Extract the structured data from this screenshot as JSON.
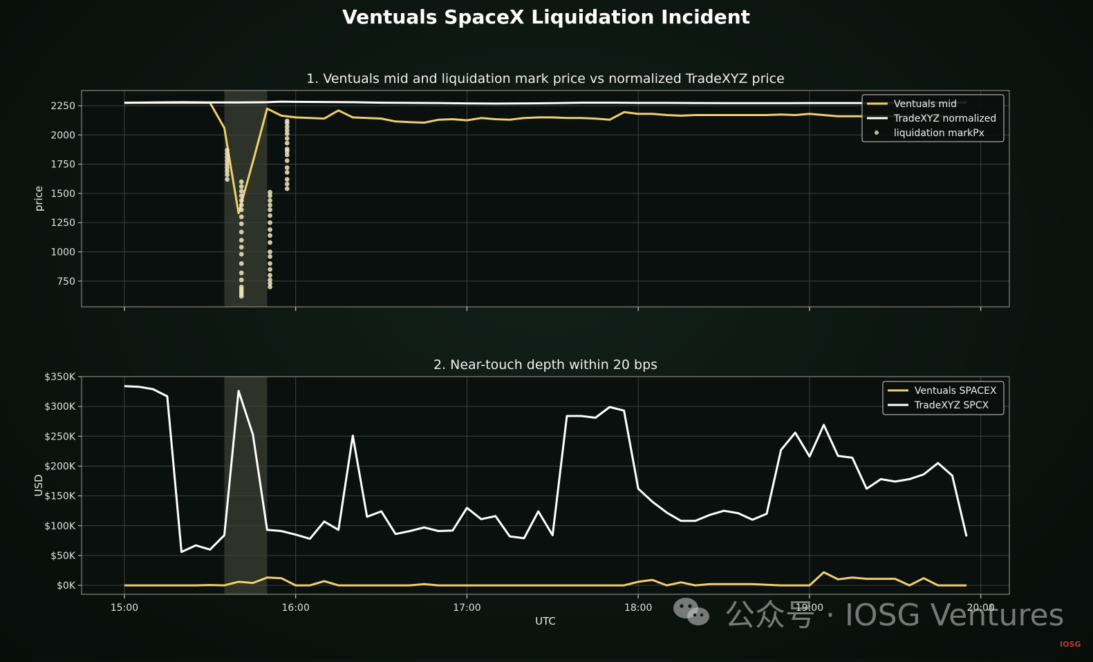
{
  "suptitle": "Ventuals SpaceX Liquidation Incident",
  "watermark": "公众号 · IOSG Ventures",
  "corner_mark": "IOSG",
  "colors": {
    "ventuals": "#f2cf6a",
    "tradexyz": "#ffffff",
    "marks": "#f3e8bf",
    "highlight": "#3a3f33",
    "grid": "#3b4540",
    "panel_bg": "#0a100d"
  },
  "chart_data": [
    {
      "type": "line",
      "title": "1. Ventuals mid and liquidation mark price vs normalized TradeXYZ price",
      "xlabel": "",
      "ylabel": "price",
      "xlim": [
        "14:45",
        "20:10"
      ],
      "ylim": [
        530,
        2380
      ],
      "yticks": [
        750,
        1000,
        1250,
        1500,
        1750,
        2000,
        2250
      ],
      "ytick_labels": [
        "750",
        "1000",
        "1250",
        "1500",
        "1750",
        "2000",
        "2250"
      ],
      "xticks": [
        "15:00",
        "16:00",
        "17:00",
        "18:00",
        "19:00",
        "20:00"
      ],
      "show_xtick_labels": false,
      "grid": true,
      "legend": "top-right",
      "highlight_window": [
        "15:35",
        "15:50"
      ],
      "series": [
        {
          "name": "Ventuals mid",
          "style": "line",
          "x": [
            "15:00",
            "15:05",
            "15:10",
            "15:15",
            "15:20",
            "15:25",
            "15:30",
            "15:35",
            "15:40",
            "15:45",
            "15:50",
            "15:55",
            "16:00",
            "16:05",
            "16:10",
            "16:15",
            "16:20",
            "16:25",
            "16:30",
            "16:35",
            "16:40",
            "16:45",
            "16:50",
            "16:55",
            "17:00",
            "17:05",
            "17:10",
            "17:15",
            "17:20",
            "17:25",
            "17:30",
            "17:35",
            "17:40",
            "17:45",
            "17:50",
            "17:55",
            "18:00",
            "18:05",
            "18:10",
            "18:15",
            "18:20",
            "18:25",
            "18:30",
            "18:35",
            "18:40",
            "18:45",
            "18:50",
            "18:55",
            "19:00",
            "19:05",
            "19:10",
            "19:15",
            "19:20",
            "19:25",
            "19:30",
            "19:35",
            "19:40",
            "19:45",
            "19:50",
            "19:55"
          ],
          "y": [
            2275,
            2275,
            2275,
            2275,
            2275,
            2275,
            2275,
            2060,
            1330,
            1770,
            2225,
            2165,
            2150,
            2145,
            2140,
            2210,
            2150,
            2145,
            2140,
            2115,
            2110,
            2105,
            2130,
            2135,
            2125,
            2145,
            2135,
            2130,
            2145,
            2150,
            2150,
            2145,
            2145,
            2140,
            2130,
            2195,
            2180,
            2180,
            2170,
            2165,
            2170,
            2170,
            2170,
            2170,
            2170,
            2170,
            2175,
            2170,
            2180,
            2170,
            2160,
            2160,
            2160,
            2160,
            2160,
            2160,
            2160,
            2160,
            2160,
            2160
          ]
        },
        {
          "name": "TradeXYZ normalized",
          "style": "line",
          "x": [
            "15:00",
            "15:10",
            "15:20",
            "15:30",
            "15:40",
            "15:50",
            "15:55",
            "16:00",
            "16:10",
            "16:20",
            "16:30",
            "16:40",
            "16:50",
            "17:00",
            "17:10",
            "17:20",
            "17:30",
            "17:40",
            "17:50",
            "18:00",
            "18:10",
            "18:20",
            "18:30",
            "18:40",
            "18:50",
            "19:00",
            "19:10",
            "19:20",
            "19:30",
            "19:40",
            "19:50",
            "19:55"
          ],
          "y": [
            2275,
            2278,
            2280,
            2278,
            2278,
            2280,
            2285,
            2283,
            2282,
            2280,
            2276,
            2274,
            2273,
            2270,
            2268,
            2270,
            2272,
            2276,
            2276,
            2274,
            2274,
            2273,
            2272,
            2272,
            2272,
            2273,
            2273,
            2273,
            2274,
            2275,
            2277,
            2278
          ]
        },
        {
          "name": "liquidation markPx",
          "style": "scatter",
          "x": [
            "15:36",
            "15:36",
            "15:36",
            "15:36",
            "15:36",
            "15:36",
            "15:36",
            "15:36",
            "15:36",
            "15:41",
            "15:41",
            "15:41",
            "15:41",
            "15:41",
            "15:41",
            "15:41",
            "15:41",
            "15:41",
            "15:41",
            "15:41",
            "15:41",
            "15:41",
            "15:41",
            "15:41",
            "15:41",
            "15:41",
            "15:41",
            "15:41",
            "15:41",
            "15:41",
            "15:51",
            "15:51",
            "15:51",
            "15:51",
            "15:51",
            "15:51",
            "15:51",
            "15:51",
            "15:51",
            "15:51",
            "15:51",
            "15:51",
            "15:51",
            "15:51",
            "15:51",
            "15:51",
            "15:51",
            "15:51",
            "15:57",
            "15:57",
            "15:57",
            "15:57",
            "15:57",
            "15:57",
            "15:57",
            "15:57",
            "15:57",
            "15:57",
            "15:57",
            "15:57",
            "15:57",
            "15:57",
            "15:57",
            "15:57"
          ],
          "y": [
            1620,
            1660,
            1690,
            1720,
            1750,
            1780,
            1810,
            1840,
            1870,
            620,
            660,
            700,
            760,
            820,
            900,
            980,
            1040,
            1100,
            1170,
            1240,
            1300,
            1360,
            1400,
            1440,
            1480,
            1520,
            1560,
            1600,
            640,
            680,
            700,
            730,
            760,
            800,
            850,
            900,
            960,
            1140,
            1190,
            1250,
            1310,
            1360,
            1400,
            1440,
            1480,
            1510,
            1000,
            1080,
            1540,
            1580,
            1620,
            1680,
            1720,
            1780,
            1830,
            1880,
            1930,
            1970,
            2010,
            2040,
            2070,
            2100,
            2120,
            1860
          ]
        }
      ]
    },
    {
      "type": "line",
      "title": "2. Near-touch depth within 20 bps",
      "xlabel": "UTC",
      "ylabel": "USD",
      "xlim": [
        "14:45",
        "20:10"
      ],
      "ylim": [
        -15000,
        350000
      ],
      "yticks": [
        0,
        50000,
        100000,
        150000,
        200000,
        250000,
        300000,
        350000
      ],
      "ytick_labels": [
        "$0K",
        "$50K",
        "$100K",
        "$150K",
        "$200K",
        "$250K",
        "$300K",
        "$350K"
      ],
      "xticks": [
        "15:00",
        "16:00",
        "17:00",
        "18:00",
        "19:00",
        "20:00"
      ],
      "show_xtick_labels": true,
      "grid": true,
      "legend": "top-right",
      "highlight_window": [
        "15:35",
        "15:50"
      ],
      "series": [
        {
          "name": "Ventuals SPACEX",
          "x": [
            "15:00",
            "15:05",
            "15:10",
            "15:15",
            "15:20",
            "15:25",
            "15:30",
            "15:35",
            "15:40",
            "15:45",
            "15:50",
            "15:55",
            "16:00",
            "16:05",
            "16:10",
            "16:15",
            "16:20",
            "16:25",
            "16:30",
            "16:35",
            "16:40",
            "16:45",
            "16:50",
            "16:55",
            "17:00",
            "17:05",
            "17:10",
            "17:15",
            "17:20",
            "17:25",
            "17:30",
            "17:35",
            "17:40",
            "17:45",
            "17:50",
            "17:55",
            "18:00",
            "18:05",
            "18:10",
            "18:15",
            "18:20",
            "18:25",
            "18:30",
            "18:35",
            "18:40",
            "18:45",
            "18:50",
            "18:55",
            "19:00",
            "19:05",
            "19:10",
            "19:15",
            "19:20",
            "19:25",
            "19:30",
            "19:35",
            "19:40",
            "19:45",
            "19:50",
            "19:55"
          ],
          "values": [
            0,
            0,
            0,
            0,
            0,
            0,
            500,
            0,
            6000,
            4000,
            13000,
            12000,
            0,
            0,
            7000,
            0,
            0,
            0,
            0,
            0,
            0,
            2000,
            0,
            0,
            0,
            0,
            0,
            0,
            0,
            0,
            0,
            0,
            0,
            0,
            0,
            0,
            6000,
            9000,
            0,
            5000,
            0,
            2000,
            2000,
            2000,
            2000,
            1000,
            0,
            0,
            0,
            22000,
            10000,
            13000,
            11000,
            11000,
            11000,
            0,
            12000,
            0,
            0,
            0
          ]
        },
        {
          "name": "TradeXYZ SPCX",
          "x": [
            "15:00",
            "15:05",
            "15:10",
            "15:15",
            "15:20",
            "15:25",
            "15:30",
            "15:35",
            "15:40",
            "15:45",
            "15:50",
            "15:55",
            "16:00",
            "16:05",
            "16:10",
            "16:15",
            "16:20",
            "16:25",
            "16:30",
            "16:35",
            "16:40",
            "16:45",
            "16:50",
            "16:55",
            "17:00",
            "17:05",
            "17:10",
            "17:15",
            "17:20",
            "17:25",
            "17:30",
            "17:35",
            "17:40",
            "17:45",
            "17:50",
            "17:55",
            "18:00",
            "18:05",
            "18:10",
            "18:15",
            "18:20",
            "18:25",
            "18:30",
            "18:35",
            "18:40",
            "18:45",
            "18:50",
            "18:55",
            "19:00",
            "19:05",
            "19:10",
            "19:15",
            "19:20",
            "19:25",
            "19:30",
            "19:35",
            "19:40",
            "19:45",
            "19:50",
            "19:55"
          ],
          "values": [
            334000,
            333000,
            329000,
            317000,
            56000,
            67000,
            60000,
            84000,
            326000,
            253000,
            93000,
            91000,
            85000,
            78000,
            107000,
            93000,
            251000,
            115000,
            124000,
            86000,
            91000,
            97000,
            91000,
            92000,
            130000,
            111000,
            116000,
            82000,
            79000,
            124000,
            84000,
            284000,
            284000,
            281000,
            299000,
            293000,
            162000,
            140000,
            122000,
            108000,
            108000,
            118000,
            125000,
            121000,
            110000,
            120000,
            227000,
            256000,
            216000,
            269000,
            217000,
            214000,
            162000,
            178000,
            174000,
            178000,
            186000,
            205000,
            184000,
            82000
          ]
        }
      ]
    }
  ]
}
